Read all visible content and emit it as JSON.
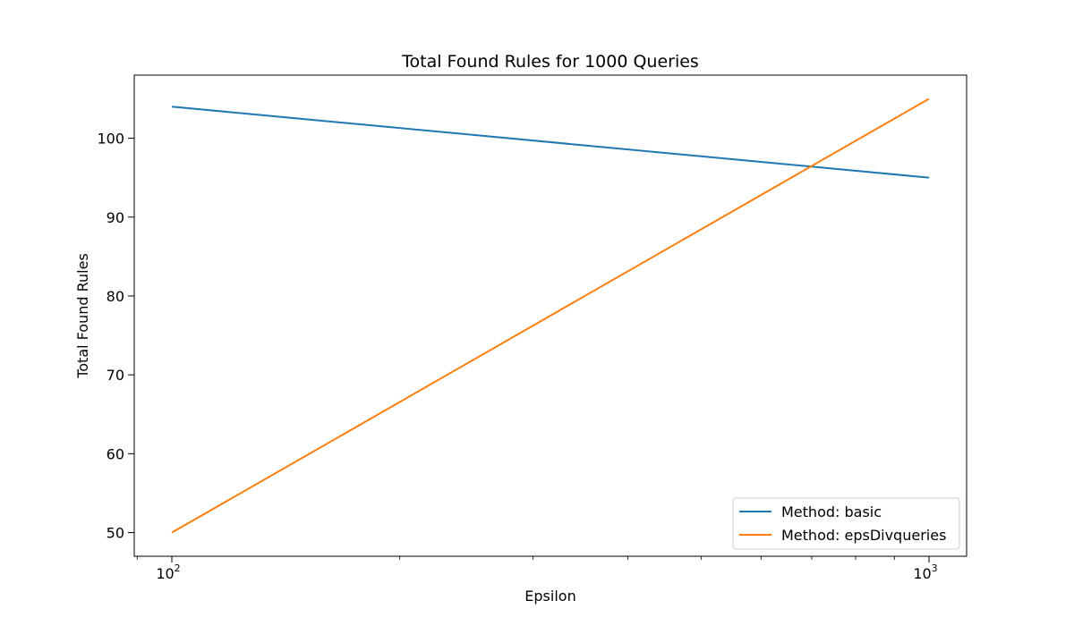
{
  "chart_data": {
    "type": "line",
    "title": "Total Found Rules for 1000 Queries",
    "xlabel": "Epsilon",
    "ylabel": "Total Found Rules",
    "xscale": "log",
    "x": [
      100,
      1000
    ],
    "x_ticks": [
      {
        "value": 100,
        "base": "10",
        "exp": "2"
      },
      {
        "value": 1000,
        "base": "10",
        "exp": "3"
      }
    ],
    "y_ticks": [
      50,
      60,
      70,
      80,
      90,
      100
    ],
    "ylim": [
      47,
      108
    ],
    "series": [
      {
        "name": "Method: basic",
        "values": [
          104,
          95
        ],
        "color": "#1f77b4"
      },
      {
        "name": "Method: epsDivqueries",
        "values": [
          50,
          105
        ],
        "color": "#ff7f0e"
      }
    ],
    "legend_position": "lower right",
    "grid": false
  }
}
